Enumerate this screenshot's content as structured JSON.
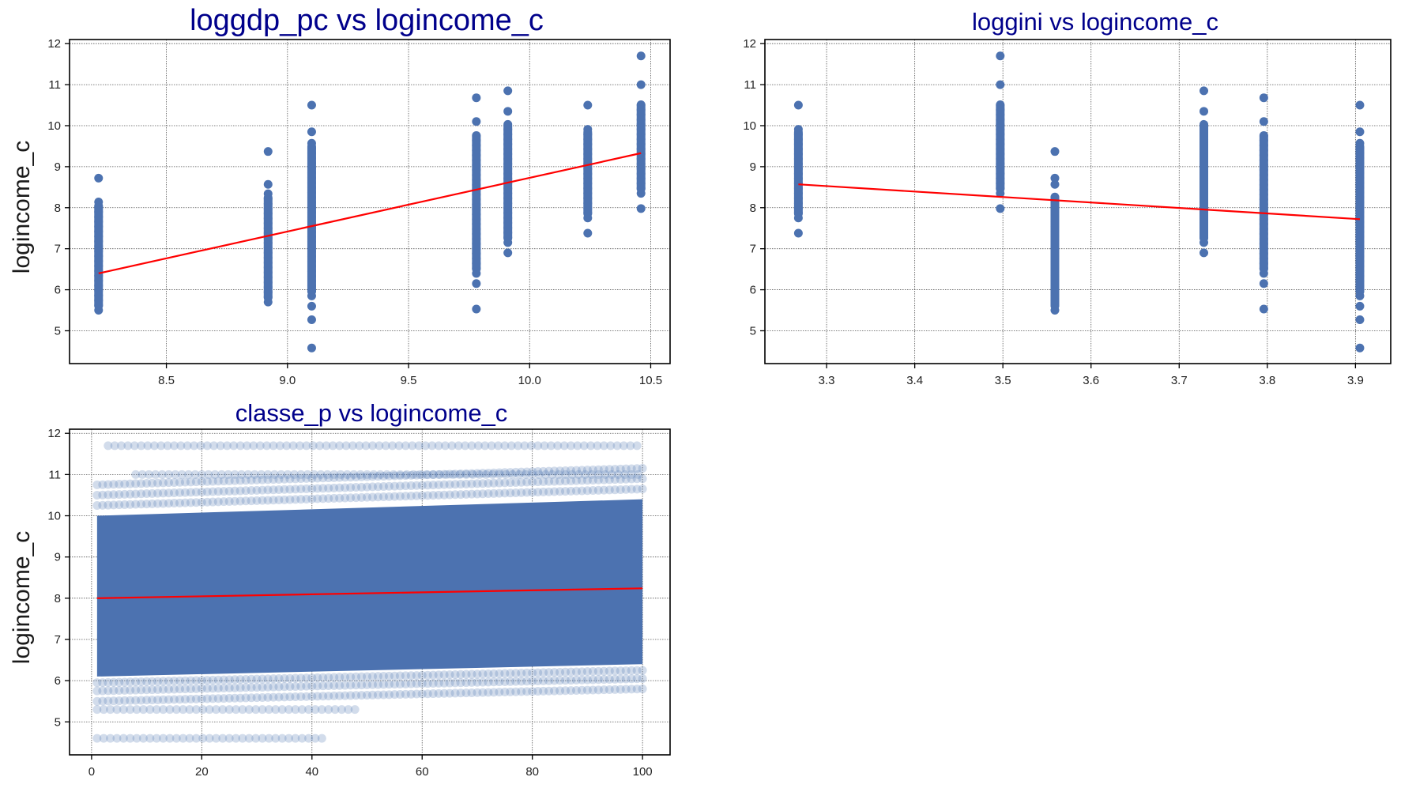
{
  "figure": {
    "title_color": "#00008b",
    "point_color": "#4c72b0",
    "fit_color": "#ff0000",
    "grid_color": "#555555"
  },
  "chart_data": [
    {
      "type": "scatter",
      "title": "loggdp_pc vs logincome_c",
      "xlabel": "",
      "ylabel": "logincome_c",
      "xlim": [
        8.1,
        10.58
      ],
      "ylim": [
        4.2,
        12.1
      ],
      "xticks": [
        8.5,
        9.0,
        9.5,
        10.0,
        10.5
      ],
      "xtick_labels": [
        "8.5",
        "9.0",
        "9.5",
        "10.0",
        "10.5"
      ],
      "yticks": [
        5,
        6,
        7,
        8,
        9,
        10,
        11,
        12
      ],
      "ytick_labels": [
        "5",
        "6",
        "7",
        "8",
        "9",
        "10",
        "11",
        "12"
      ],
      "grid": true,
      "point_alpha": 1.0,
      "groups": [
        {
          "x": 8.22,
          "y_min": 5.5,
          "y_max": 8.15,
          "outliers": [
            8.72
          ]
        },
        {
          "x": 8.92,
          "y_min": 5.7,
          "y_max": 8.35,
          "outliers": [
            8.57,
            9.37
          ]
        },
        {
          "x": 9.1,
          "y_min": 5.85,
          "y_max": 9.6,
          "outliers": [
            4.58,
            5.27,
            5.6,
            9.85,
            10.5
          ]
        },
        {
          "x": 9.78,
          "y_min": 6.4,
          "y_max": 9.85,
          "outliers": [
            5.53,
            6.15,
            10.1,
            10.68
          ]
        },
        {
          "x": 9.91,
          "y_min": 7.15,
          "y_max": 10.1,
          "outliers": [
            6.9,
            10.35,
            10.85
          ]
        },
        {
          "x": 10.24,
          "y_min": 7.75,
          "y_max": 9.95,
          "outliers": [
            7.38,
            10.5
          ]
        },
        {
          "x": 10.46,
          "y_min": 8.35,
          "y_max": 10.6,
          "outliers": [
            7.98,
            11.0,
            11.7
          ]
        }
      ],
      "fit_line": {
        "x": [
          8.22,
          10.46
        ],
        "y": [
          6.4,
          9.33
        ]
      }
    },
    {
      "type": "scatter",
      "title": "loggini vs logincome_c",
      "xlabel": "",
      "ylabel": "",
      "xlim": [
        3.23,
        3.94
      ],
      "ylim": [
        4.2,
        12.1
      ],
      "xticks": [
        3.3,
        3.4,
        3.5,
        3.6,
        3.7,
        3.8,
        3.9
      ],
      "xtick_labels": [
        "3.3",
        "3.4",
        "3.5",
        "3.6",
        "3.7",
        "3.8",
        "3.9"
      ],
      "yticks": [
        5,
        6,
        7,
        8,
        9,
        10,
        11,
        12
      ],
      "ytick_labels": [
        "5",
        "6",
        "7",
        "8",
        "9",
        "10",
        "11",
        "12"
      ],
      "grid": true,
      "point_alpha": 1.0,
      "groups": [
        {
          "x": 3.268,
          "y_min": 7.75,
          "y_max": 9.95,
          "outliers": [
            7.38,
            10.5
          ]
        },
        {
          "x": 3.497,
          "y_min": 8.35,
          "y_max": 10.6,
          "outliers": [
            7.98,
            11.0,
            11.7
          ]
        },
        {
          "x": 3.559,
          "y_min": 5.5,
          "y_max": 8.35,
          "outliers": [
            8.57,
            8.72,
            9.37
          ]
        },
        {
          "x": 3.728,
          "y_min": 7.15,
          "y_max": 10.1,
          "outliers": [
            6.9,
            10.35,
            10.85
          ]
        },
        {
          "x": 3.796,
          "y_min": 6.4,
          "y_max": 9.85,
          "outliers": [
            5.53,
            6.15,
            10.1,
            10.68
          ]
        },
        {
          "x": 3.905,
          "y_min": 5.85,
          "y_max": 9.6,
          "outliers": [
            4.58,
            5.27,
            5.6,
            9.85,
            10.5
          ]
        }
      ],
      "fit_line": {
        "x": [
          3.268,
          3.905
        ],
        "y": [
          8.57,
          7.72
        ]
      }
    },
    {
      "type": "scatter",
      "title": "classe_p vs logincome_c",
      "xlabel": "",
      "ylabel": "logincome_c",
      "xlim": [
        -4,
        105
      ],
      "ylim": [
        4.2,
        12.1
      ],
      "xticks": [
        0,
        20,
        40,
        60,
        80,
        100
      ],
      "xtick_labels": [
        "0",
        "20",
        "40",
        "60",
        "80",
        "100"
      ],
      "yticks": [
        5,
        6,
        7,
        8,
        9,
        10,
        11,
        12
      ],
      "ytick_labels": [
        "5",
        "6",
        "7",
        "8",
        "9",
        "10",
        "11",
        "12"
      ],
      "grid": true,
      "point_alpha": 0.25,
      "x_range": [
        1,
        100
      ],
      "dense_band": {
        "y_min_start": 6.1,
        "y_min_end": 6.4,
        "y_max_start": 10.0,
        "y_max_end": 10.4
      },
      "sparse_rows": [
        {
          "y": 4.6,
          "x_from": 1,
          "x_to": 42
        },
        {
          "y": 5.3,
          "x_from": 1,
          "x_to": 48
        },
        {
          "y": 11.0,
          "x_from": 8,
          "x_to": 100
        },
        {
          "y": 11.7,
          "x_from": 3,
          "x_to": 100
        }
      ],
      "fit_line": {
        "x": [
          1,
          100
        ],
        "y": [
          8.0,
          8.24
        ]
      }
    }
  ]
}
